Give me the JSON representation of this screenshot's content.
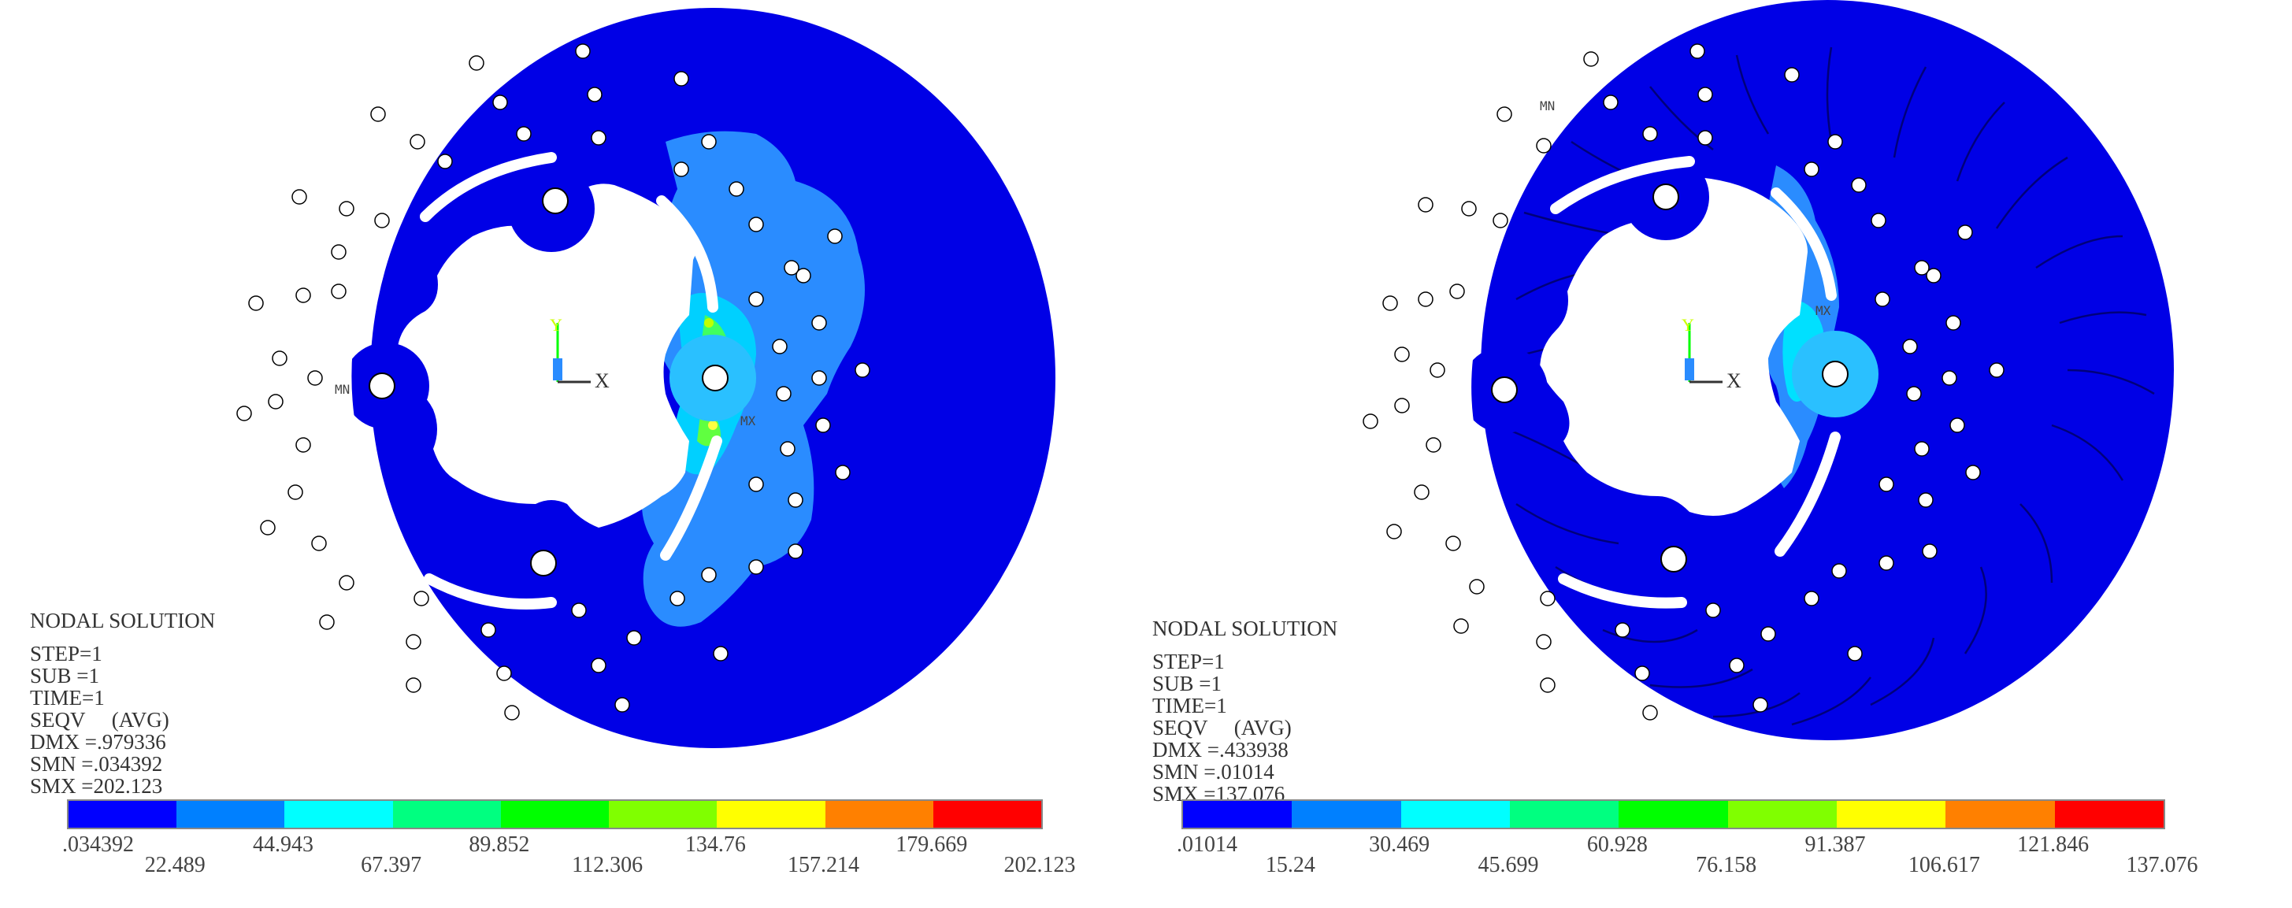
{
  "panels": [
    {
      "info": {
        "title": "NODAL SOLUTION",
        "step": "STEP=1",
        "sub": "SUB =1",
        "time": "TIME=1",
        "seqv": "SEQV     (AVG)",
        "dmx": "DMX =.979336",
        "smn": "SMN =.034392",
        "smx": "SMX =202.123"
      },
      "axis": {
        "y": "Y",
        "x": "X"
      },
      "legend": [
        "0.034392",
        "22.489",
        "44.943",
        "67.397",
        "89.852",
        "112.306",
        "134.76",
        "157.214",
        "179.669",
        "202.123"
      ],
      "legend_display": [
        ".034392",
        "22.489",
        "44.943",
        "67.397",
        "89.852",
        "112.306",
        "134.76",
        "157.214",
        "179.669",
        "202.123"
      ],
      "markers": {
        "mx": "MX",
        "mn": "MN"
      }
    },
    {
      "info": {
        "title": "NODAL SOLUTION",
        "step": "STEP=1",
        "sub": "SUB =1",
        "time": "TIME=1",
        "seqv": "SEQV     (AVG)",
        "dmx": "DMX =.433938",
        "smn": "SMN =.01014",
        "smx": "SMX =137.076"
      },
      "axis": {
        "y": "Y",
        "x": "X"
      },
      "legend": [
        "0.01014",
        "15.24",
        "30.469",
        "45.699",
        "60.928",
        "76.158",
        "91.387",
        "106.617",
        "121.846",
        "137.076"
      ],
      "legend_display": [
        ".01014",
        "15.24",
        "30.469",
        "45.699",
        "60.928",
        "76.158",
        "91.387",
        "106.617",
        "121.846",
        "137.076"
      ],
      "markers": {
        "mx": "MX",
        "mn": "MN"
      }
    }
  ],
  "legend_colors": [
    "#0000ff",
    "#0080ff",
    "#00ffff",
    "#00ff80",
    "#00ff00",
    "#80ff00",
    "#ffff00",
    "#ff8000",
    "#ff0000"
  ]
}
